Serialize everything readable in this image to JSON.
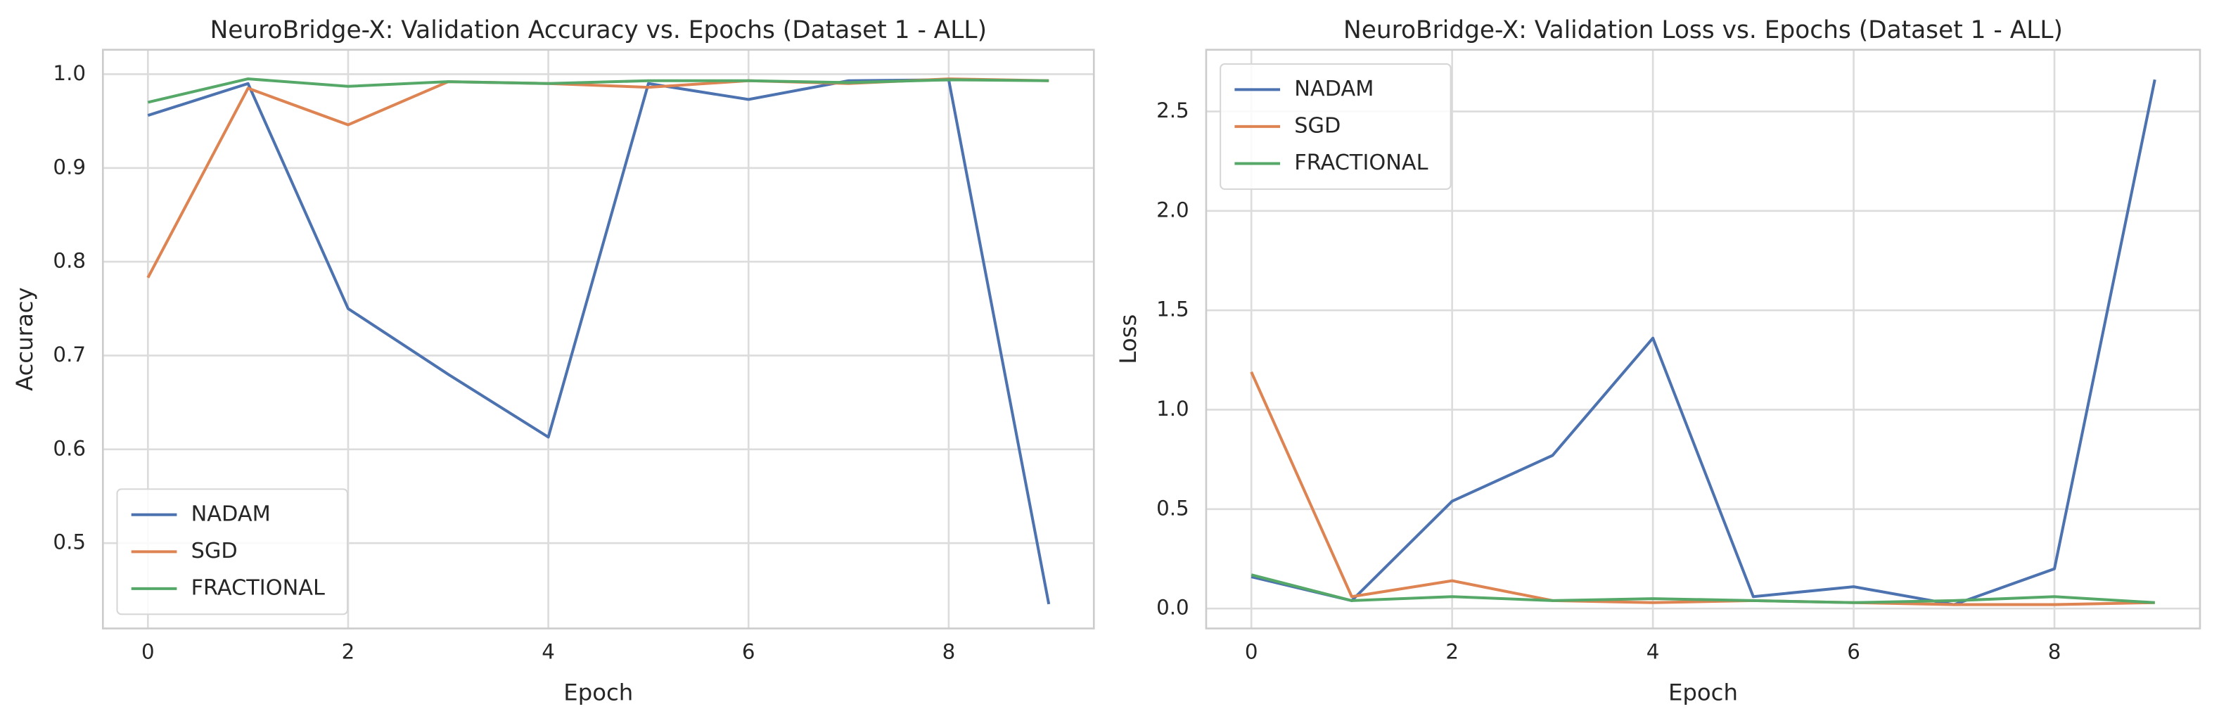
{
  "chart_data": [
    {
      "type": "line",
      "title": "NeuroBridge-X: Validation Accuracy vs. Epochs (Dataset 1 - ALL)",
      "x_label": "Epoch",
      "y_label": "Accuracy",
      "x": [
        0,
        1,
        2,
        3,
        4,
        5,
        6,
        7,
        8,
        9
      ],
      "xlim": [
        -0.45,
        9.45
      ],
      "xticks": [
        0,
        2,
        4,
        6,
        8
      ],
      "ylim": [
        0.409,
        1.026
      ],
      "yticks": [
        0.5,
        0.6,
        0.7,
        0.8,
        0.9,
        {
          "value": 1.0,
          "label": "1.0"
        }
      ],
      "grid": true,
      "legend": "lower left",
      "series": [
        {
          "name": "NADAM",
          "color": "#4c72b0",
          "values": [
            0.956,
            0.99,
            0.75,
            0.68,
            0.613,
            0.99,
            0.973,
            0.993,
            0.994,
            0.435
          ]
        },
        {
          "name": "SGD",
          "color": "#dd8452",
          "values": [
            0.783,
            0.985,
            0.946,
            0.992,
            0.99,
            0.986,
            0.993,
            0.99,
            0.995,
            0.993
          ]
        },
        {
          "name": "FRACTIONAL",
          "color": "#55a868",
          "values": [
            0.97,
            0.995,
            0.987,
            0.992,
            0.99,
            0.993,
            0.993,
            0.991,
            0.994,
            0.993
          ]
        }
      ]
    },
    {
      "type": "line",
      "title": "NeuroBridge-X: Validation Loss vs. Epochs (Dataset 1 - ALL)",
      "x_label": "Epoch",
      "y_label": "Loss",
      "x": [
        0,
        1,
        2,
        3,
        4,
        5,
        6,
        7,
        8,
        9
      ],
      "xlim": [
        -0.45,
        9.45
      ],
      "xticks": [
        0,
        2,
        4,
        6,
        8
      ],
      "ylim": [
        -0.1,
        2.81
      ],
      "yticks": [
        {
          "value": 0.0,
          "label": "0.0"
        },
        0.5,
        {
          "value": 1.0,
          "label": "1.0"
        },
        1.5,
        {
          "value": 2.0,
          "label": "2.0"
        },
        2.5
      ],
      "grid": true,
      "legend": "upper left",
      "series": [
        {
          "name": "NADAM",
          "color": "#4c72b0",
          "values": [
            0.16,
            0.04,
            0.54,
            0.77,
            1.36,
            0.06,
            0.11,
            0.02,
            0.2,
            2.66
          ]
        },
        {
          "name": "SGD",
          "color": "#dd8452",
          "values": [
            1.19,
            0.06,
            0.14,
            0.04,
            0.03,
            0.04,
            0.03,
            0.02,
            0.02,
            0.03
          ]
        },
        {
          "name": "FRACTIONAL",
          "color": "#55a868",
          "values": [
            0.17,
            0.04,
            0.06,
            0.04,
            0.05,
            0.04,
            0.03,
            0.04,
            0.06,
            0.03
          ]
        }
      ]
    }
  ]
}
